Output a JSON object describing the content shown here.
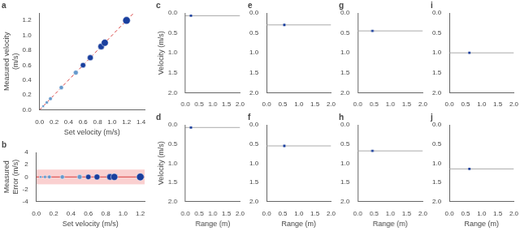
{
  "chart_data": [
    {
      "type": "scatter",
      "title": "a",
      "xlabel": "Set velocity (m/s)",
      "ylabel": "Measured velocity\n(m/s)",
      "xlim": [
        0.0,
        1.45
      ],
      "ylim": [
        0.0,
        1.3
      ],
      "xticks": [
        {
          "value": 0,
          "label": "0.0"
        },
        0.2,
        0.4,
        0.6,
        0.8,
        {
          "value": 1,
          "label": "1.0"
        },
        1.2,
        1.4
      ],
      "yticks": [
        {
          "value": 0,
          "label": "0.0"
        },
        0.2,
        0.4,
        0.6,
        0.8,
        {
          "value": 1,
          "label": "1.0"
        },
        1.2
      ],
      "grid": false,
      "series": [
        {
          "type": "line",
          "color": "#d94040",
          "line_style": "dashed",
          "x": [
            0,
            1.3
          ],
          "values": [
            0,
            1.3
          ]
        },
        {
          "type": "scatter",
          "marker": "circle",
          "colors": [
            "#6699cc",
            "#6699cc",
            "#6699cc",
            "#6699cc",
            "#6699cc",
            "#1a3f9e",
            "#1a3f9e",
            "#1a3f9e",
            "#1a3f9e",
            "#1a3f9e"
          ],
          "x": [
            0.05,
            0.1,
            0.15,
            0.3,
            0.5,
            0.6,
            0.7,
            0.85,
            0.9,
            1.2
          ],
          "values": [
            0.05,
            0.1,
            0.15,
            0.3,
            0.5,
            0.6,
            0.7,
            0.85,
            0.9,
            1.2
          ]
        }
      ]
    },
    {
      "type": "scatter",
      "title": "b",
      "xlabel": "Set velocity (m/s)",
      "ylabel": "Measured\nError (m/s)",
      "xlim": [
        0.0,
        1.25
      ],
      "ylim": [
        -4,
        4
      ],
      "xticks": [
        {
          "value": 0,
          "label": "0.0"
        },
        0.2,
        0.4,
        0.6,
        0.8,
        {
          "value": 1,
          "label": "1.0"
        },
        1.2
      ],
      "yticks": [
        -4,
        -2,
        0,
        2,
        4
      ],
      "grid": false,
      "series": [
        {
          "type": "band",
          "color": "#f5aaaa",
          "values": [
            -1.2,
            1.2
          ]
        },
        {
          "type": "hline",
          "color": "#d94040",
          "values": [
            0
          ]
        },
        {
          "type": "scatter",
          "marker": "circle",
          "colors": [
            "#6699cc",
            "#6699cc",
            "#6699cc",
            "#6699cc",
            "#6699cc",
            "#1a3f9e",
            "#1a3f9e",
            "#1a3f9e",
            "#1a3f9e",
            "#1a3f9e"
          ],
          "x": [
            0.05,
            0.1,
            0.15,
            0.3,
            0.5,
            0.6,
            0.7,
            0.85,
            0.9,
            1.2
          ],
          "values": [
            0.0,
            0.0,
            0.0,
            0.0,
            0.0,
            0.0,
            0.0,
            0.0,
            0.0,
            0.0
          ]
        }
      ]
    },
    {
      "type": "scatter",
      "title": "c",
      "ylabel": "Velocity (m/s)",
      "xlim": [
        0,
        2
      ],
      "ylim": [
        2,
        0
      ],
      "xticks": [
        {
          "value": 0,
          "label": "0.0"
        },
        0.5,
        {
          "value": 1,
          "label": "1.0"
        },
        1.5,
        {
          "value": 2,
          "label": "2.0"
        }
      ],
      "yticks": [
        {
          "value": 0,
          "label": "0.0"
        },
        0.5,
        {
          "value": 1,
          "label": "1.0"
        },
        1.5,
        {
          "value": 2,
          "label": "2.0"
        }
      ],
      "grid": false,
      "series": [
        {
          "type": "hline",
          "color": "#aaaaaa",
          "values": [
            0.07
          ]
        },
        {
          "type": "scatter",
          "marker": "square",
          "color": "#1a3f9e",
          "x": [
            0.2
          ],
          "values": [
            0.07
          ]
        }
      ]
    },
    {
      "type": "scatter",
      "title": "e",
      "xlim": [
        0,
        2
      ],
      "ylim": [
        2,
        0
      ],
      "xticks": [
        {
          "value": 0,
          "label": "0.0"
        },
        0.5,
        {
          "value": 1,
          "label": "1.0"
        },
        1.5,
        {
          "value": 2,
          "label": "2.0"
        }
      ],
      "yticks": [
        {
          "value": 0,
          "label": "0.0"
        },
        0.5,
        {
          "value": 1,
          "label": "1.0"
        },
        1.5,
        {
          "value": 2,
          "label": "2.0"
        }
      ],
      "grid": false,
      "series": [
        {
          "type": "hline",
          "color": "#aaaaaa",
          "values": [
            0.3
          ]
        },
        {
          "type": "scatter",
          "marker": "square",
          "color": "#1a3f9e",
          "x": [
            0.55
          ],
          "values": [
            0.3
          ]
        }
      ]
    },
    {
      "type": "scatter",
      "title": "g",
      "xlim": [
        0,
        2
      ],
      "ylim": [
        2,
        0
      ],
      "xticks": [
        {
          "value": 0,
          "label": "0.0"
        },
        0.5,
        {
          "value": 1,
          "label": "1.0"
        },
        1.5,
        {
          "value": 2,
          "label": "2.0"
        }
      ],
      "yticks": [
        {
          "value": 0,
          "label": "0.0"
        },
        0.5,
        {
          "value": 1,
          "label": "1.0"
        },
        1.5,
        {
          "value": 2,
          "label": "2.0"
        }
      ],
      "grid": false,
      "series": [
        {
          "type": "hline",
          "color": "#aaaaaa",
          "values": [
            0.45
          ]
        },
        {
          "type": "scatter",
          "marker": "square",
          "color": "#1a3f9e",
          "x": [
            0.45
          ],
          "values": [
            0.45
          ]
        }
      ]
    },
    {
      "type": "scatter",
      "title": "i",
      "xlim": [
        0,
        2
      ],
      "ylim": [
        2,
        0
      ],
      "xticks": [
        {
          "value": 0,
          "label": "0.0"
        },
        0.5,
        {
          "value": 1,
          "label": "1.0"
        },
        1.5,
        {
          "value": 2,
          "label": "2.0"
        }
      ],
      "yticks": [
        {
          "value": 0,
          "label": "0.0"
        },
        0.5,
        {
          "value": 1,
          "label": "1.0"
        },
        1.5,
        {
          "value": 2,
          "label": "2.0"
        }
      ],
      "grid": false,
      "series": [
        {
          "type": "hline",
          "color": "#aaaaaa",
          "values": [
            1.0
          ]
        },
        {
          "type": "scatter",
          "marker": "square",
          "color": "#1a3f9e",
          "x": [
            0.62
          ],
          "values": [
            1.0
          ]
        }
      ]
    },
    {
      "type": "scatter",
      "title": "d",
      "xlabel": "Range (m)",
      "ylabel": "Velocity (m/s)",
      "xlim": [
        0,
        2
      ],
      "ylim": [
        2,
        0
      ],
      "xticks": [
        {
          "value": 0,
          "label": "0.0"
        },
        0.5,
        {
          "value": 1,
          "label": "1.0"
        },
        1.5,
        {
          "value": 2,
          "label": "2.0"
        }
      ],
      "yticks": [
        {
          "value": 0,
          "label": "0.0"
        },
        0.5,
        {
          "value": 1,
          "label": "1.0"
        },
        1.5,
        {
          "value": 2,
          "label": "2.0"
        }
      ],
      "grid": false,
      "series": [
        {
          "type": "hline",
          "color": "#aaaaaa",
          "values": [
            0.07
          ]
        },
        {
          "type": "scatter",
          "marker": "square",
          "color": "#1a3f9e",
          "x": [
            0.2
          ],
          "values": [
            0.07
          ]
        }
      ]
    },
    {
      "type": "scatter",
      "title": "f",
      "xlabel": "Range (m)",
      "xlim": [
        0,
        2
      ],
      "ylim": [
        2,
        0
      ],
      "xticks": [
        {
          "value": 0,
          "label": "0.0"
        },
        0.5,
        {
          "value": 1,
          "label": "1.0"
        },
        1.5,
        {
          "value": 2,
          "label": "2.0"
        }
      ],
      "yticks": [
        {
          "value": 0,
          "label": "0.0"
        },
        0.5,
        {
          "value": 1,
          "label": "1.0"
        },
        1.5,
        {
          "value": 2,
          "label": "2.0"
        }
      ],
      "grid": false,
      "series": [
        {
          "type": "hline",
          "color": "#aaaaaa",
          "values": [
            0.55
          ]
        },
        {
          "type": "scatter",
          "marker": "square",
          "color": "#1a3f9e",
          "x": [
            0.55
          ],
          "values": [
            0.55
          ]
        }
      ]
    },
    {
      "type": "scatter",
      "title": "h",
      "xlabel": "Range (m)",
      "xlim": [
        0,
        2
      ],
      "ylim": [
        2,
        0
      ],
      "xticks": [
        {
          "value": 0,
          "label": "0.0"
        },
        0.5,
        {
          "value": 1,
          "label": "1.0"
        },
        1.5,
        {
          "value": 2,
          "label": "2.0"
        }
      ],
      "yticks": [
        {
          "value": 0,
          "label": "0.0"
        },
        0.5,
        {
          "value": 1,
          "label": "1.0"
        },
        1.5,
        {
          "value": 2,
          "label": "2.0"
        }
      ],
      "grid": false,
      "series": [
        {
          "type": "hline",
          "color": "#aaaaaa",
          "values": [
            0.68
          ]
        },
        {
          "type": "scatter",
          "marker": "square",
          "color": "#1a3f9e",
          "x": [
            0.45
          ],
          "values": [
            0.68
          ]
        }
      ]
    },
    {
      "type": "scatter",
      "title": "j",
      "xlabel": "Range (m)",
      "xlim": [
        0,
        2
      ],
      "ylim": [
        2,
        0
      ],
      "xticks": [
        {
          "value": 0,
          "label": "0.0"
        },
        0.5,
        {
          "value": 1,
          "label": "1.0"
        },
        1.5,
        {
          "value": 2,
          "label": "2.0"
        }
      ],
      "yticks": [
        {
          "value": 0,
          "label": "0.0"
        },
        0.5,
        {
          "value": 1,
          "label": "1.0"
        },
        1.5,
        {
          "value": 2,
          "label": "2.0"
        }
      ],
      "grid": false,
      "series": [
        {
          "type": "hline",
          "color": "#aaaaaa",
          "values": [
            1.15
          ]
        },
        {
          "type": "scatter",
          "marker": "square",
          "color": "#1a3f9e",
          "x": [
            0.62
          ],
          "values": [
            1.15
          ]
        }
      ]
    }
  ]
}
